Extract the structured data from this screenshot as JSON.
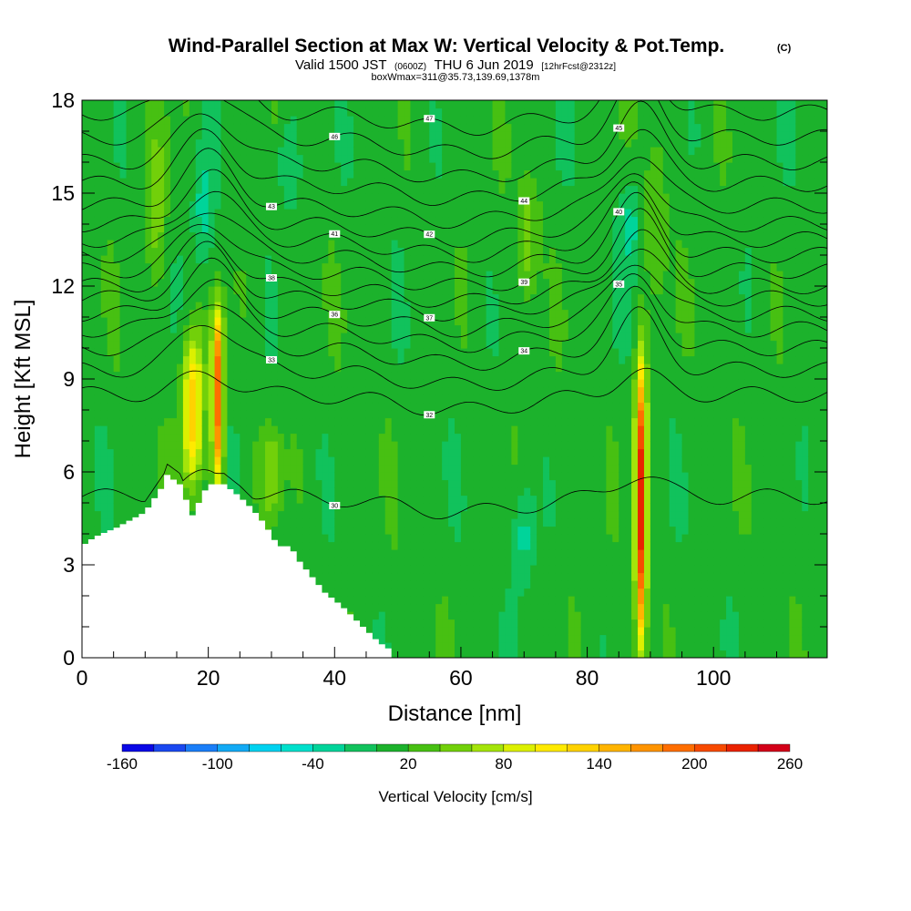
{
  "header": {
    "title": "Wind-Parallel Section at Max W: Vertical Velocity & Pot.Temp.",
    "title_units": "(C)",
    "subtitle_valid": "Valid 1500 JST",
    "subtitle_utc": "(0600Z)",
    "subtitle_date": "THU 6 Jun 2019",
    "subtitle_fcst": "[12hrFcst@2312z]",
    "box_line": "boxWmax=311@35.73,139.69,1378m"
  },
  "chart_data": {
    "type": "heatmap",
    "title": "Wind-Parallel Section at Max W: Vertical Velocity & Pot.Temp.",
    "xlabel": "Distance [nm]",
    "ylabel": "Height [Kft MSL]",
    "xlim": [
      0,
      118
    ],
    "ylim": [
      0,
      18
    ],
    "x_ticks": [
      "0",
      "20",
      "40",
      "60",
      "80",
      "100"
    ],
    "y_ticks": [
      "0",
      "3",
      "6",
      "9",
      "12",
      "15",
      "18"
    ],
    "x_tick_values": [
      0,
      20,
      40,
      60,
      80,
      100
    ],
    "y_tick_values": [
      0,
      3,
      6,
      9,
      12,
      15,
      18
    ],
    "background_w_cms": 10,
    "updraft_cores": [
      {
        "x": 88.5,
        "z_bottom": 0.3,
        "z_top": 9.5,
        "w_max": 230
      },
      {
        "x": 21.5,
        "z_bottom": 5.5,
        "z_top": 11.3,
        "w_max": 190
      },
      {
        "x": 17.5,
        "z_bottom": 5.5,
        "z_top": 10.5,
        "w_max": 130
      },
      {
        "x": 30,
        "z_bottom": 4.5,
        "z_top": 7.5,
        "w_max": 50
      },
      {
        "x": 70.5,
        "z_bottom": 11.5,
        "z_top": 15.5,
        "w_max": 55
      },
      {
        "x": 12,
        "z_bottom": 12,
        "z_top": 17.5,
        "w_max": 45
      },
      {
        "x": 91,
        "z_bottom": 12,
        "z_top": 17,
        "w_max": 45
      }
    ],
    "downdraft_cores": [
      {
        "x": 70,
        "z_bottom": 2,
        "z_top": 6,
        "w_min": -35
      },
      {
        "x": 19,
        "z_bottom": 12,
        "z_top": 17,
        "w_min": -30
      },
      {
        "x": 32.5,
        "z_bottom": 14,
        "z_top": 18,
        "w_min": -30
      },
      {
        "x": 87,
        "z_bottom": 12,
        "z_top": 16,
        "w_min": -30
      }
    ],
    "terrain_kft": [
      [
        0,
        3.6
      ],
      [
        2,
        3.9
      ],
      [
        5.5,
        4.2
      ],
      [
        10,
        4.7
      ],
      [
        11,
        5.0
      ],
      [
        12,
        5.3
      ],
      [
        13,
        5.6
      ],
      [
        13.5,
        5.9
      ],
      [
        15.5,
        5.6
      ],
      [
        16.5,
        5.1
      ],
      [
        17.5,
        4.6
      ],
      [
        18.5,
        5.0
      ],
      [
        20,
        5.6
      ],
      [
        22.5,
        5.6
      ],
      [
        25,
        5.2
      ],
      [
        27,
        4.8
      ],
      [
        29,
        4.3
      ],
      [
        30.5,
        3.8
      ],
      [
        31.5,
        3.6
      ],
      [
        33,
        3.6
      ],
      [
        34.5,
        3.1
      ],
      [
        36.5,
        2.6
      ],
      [
        38.5,
        2.1
      ],
      [
        41,
        1.7
      ],
      [
        43,
        1.3
      ],
      [
        45,
        0.9
      ],
      [
        47,
        0.5
      ],
      [
        48.5,
        0.3
      ],
      [
        49.5,
        0
      ]
    ],
    "theta_levels": [
      {
        "value": 30,
        "label": "30",
        "z_left": 5.2
      },
      {
        "value": 32,
        "label": "32",
        "z_left": 8.5
      },
      {
        "value": 33,
        "label": "33",
        "z_left": 9.3
      },
      {
        "value": 34,
        "label": "34",
        "z_left": 10.0
      },
      {
        "value": 35,
        "label": "35",
        "z_left": 10.6
      },
      {
        "value": 36,
        "label": "36",
        "z_left": 11.1
      },
      {
        "value": 37,
        "label": "37",
        "z_left": 11.6
      },
      {
        "value": 38,
        "label": "38",
        "z_left": 12.0
      },
      {
        "value": 39,
        "label": "39",
        "z_left": 12.5
      },
      {
        "value": 40,
        "label": "40",
        "z_left": 13.0
      },
      {
        "value": 41,
        "label": "41",
        "z_left": 13.5
      },
      {
        "value": 42,
        "label": "42",
        "z_left": 14.0
      },
      {
        "value": 43,
        "label": "43",
        "z_left": 14.6
      },
      {
        "value": 44,
        "label": "44",
        "z_left": 15.3
      },
      {
        "value": 45,
        "label": "45",
        "z_left": 16.0
      },
      {
        "value": 46,
        "label": "46",
        "z_left": 16.8
      },
      {
        "value": 47,
        "label": "47",
        "z_left": 17.6
      }
    ],
    "colorbar": {
      "label": "Vertical Velocity [cm/s]",
      "min": -160,
      "max": 260,
      "step": 20,
      "tick_labels": [
        "-160",
        "-100",
        "-40",
        "20",
        "80",
        "140",
        "200",
        "260"
      ],
      "tick_values": [
        -160,
        -100,
        -40,
        20,
        80,
        140,
        200,
        260
      ],
      "colors": [
        "#0a08e6",
        "#1a48f0",
        "#1a7ef8",
        "#12aaf5",
        "#00d2f0",
        "#00e0cc",
        "#00d49a",
        "#11c25c",
        "#1cb22c",
        "#47c012",
        "#72d00a",
        "#a4e40a",
        "#dcf000",
        "#ffea00",
        "#ffd200",
        "#ffb400",
        "#ff9400",
        "#ff6e00",
        "#f74a00",
        "#ea2200",
        "#d30018",
        "#b80038",
        "#a00058",
        "#820078",
        "#5c0096"
      ]
    }
  }
}
